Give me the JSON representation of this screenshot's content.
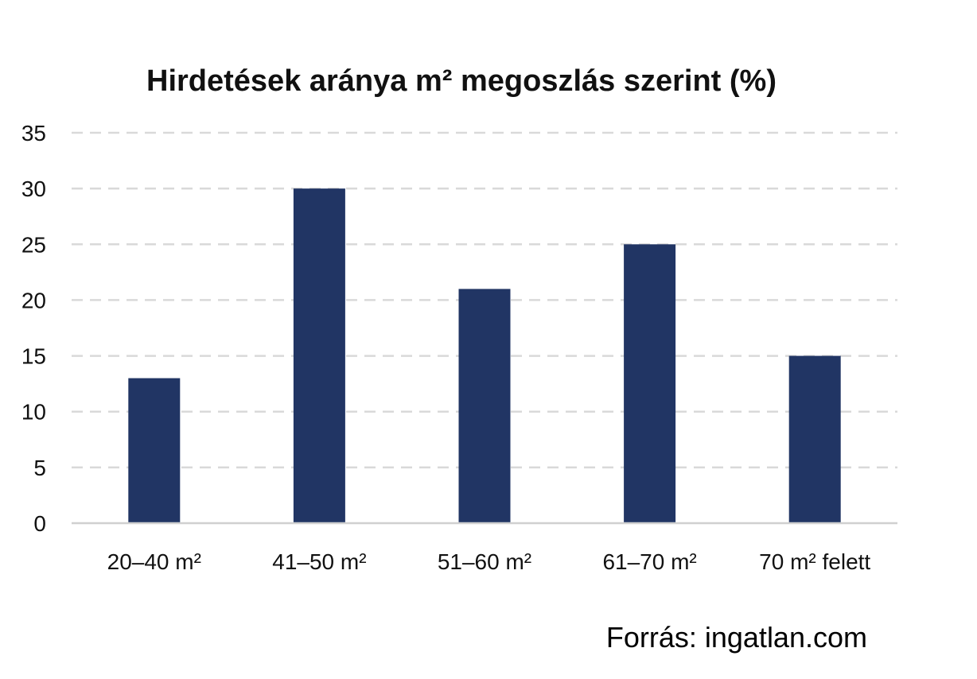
{
  "source": "Forrás: ingatlan.com",
  "chart_data": {
    "type": "bar",
    "title": "Hirdetések aránya m² megoszlás szerint (%)",
    "xlabel": "",
    "ylabel": "",
    "categories": [
      "20–40 m²",
      "41–50 m²",
      "51–60 m²",
      "61–70 m²",
      "70 m² felett"
    ],
    "values": [
      13,
      30,
      21,
      25,
      15
    ],
    "ylim": [
      0,
      35
    ],
    "yticks": [
      "0",
      "5",
      "10",
      "15",
      "20",
      "25",
      "30",
      "35"
    ],
    "grid": true,
    "legend": "none",
    "bar_color": "#213564"
  }
}
